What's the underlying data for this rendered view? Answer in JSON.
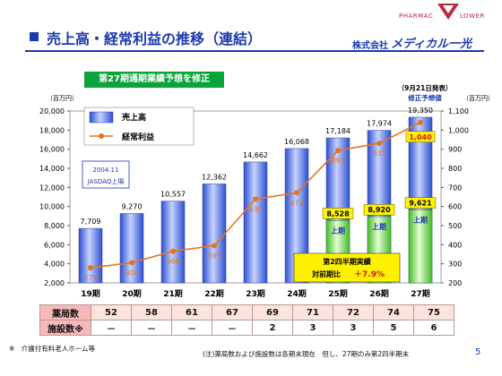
{
  "header": {
    "title": "売上高・経常利益の推移（連結）",
    "company_prefix": "株式会社",
    "company_name": "メディカル一光",
    "brand_left": "PHARMAC",
    "brand_right": "LOWER"
  },
  "banner": "第27期通期業績予想を修正",
  "chart_data": {
    "type": "bar",
    "categories": [
      "19期",
      "20期",
      "21期",
      "22期",
      "23期",
      "24期",
      "25期",
      "26期",
      "27期"
    ],
    "series": [
      {
        "name": "売上高",
        "type": "bar",
        "axis": "left",
        "values": [
          7709,
          9270,
          10557,
          12362,
          14662,
          16068,
          17184,
          17974,
          19350
        ],
        "labels": [
          "7,709",
          "9,270",
          "10,557",
          "12,362",
          "14,662",
          "16,068",
          "17,184",
          "17,974",
          "19,350"
        ]
      },
      {
        "name": "経常利益",
        "type": "line",
        "axis": "right",
        "values": [
          279,
          306,
          366,
          395,
          639,
          672,
          893,
          931,
          1040
        ],
        "labels": [
          "279",
          "306",
          "366",
          "395",
          "639",
          "672",
          "893",
          "931",
          "1,040"
        ]
      }
    ],
    "half_year_values": [
      8528,
      8920,
      9621
    ],
    "half_year_labels": [
      "8,528",
      "8,920",
      "9,621"
    ],
    "half_year_tag": "上期",
    "left_ticks": [
      "20,000",
      "18,000",
      "16,000",
      "14,000",
      "12,000",
      "10,000",
      "8,000",
      "6,000",
      "4,000",
      "2,000"
    ],
    "right_ticks": [
      "1,100",
      "1,000",
      "900",
      "800",
      "700",
      "600",
      "500",
      "400",
      "300",
      "200"
    ],
    "ylim": [
      2000,
      20000
    ],
    "ylim_right": [
      200,
      1100
    ],
    "ylabel": "（百万円）",
    "ylabel_right": "（百万円）",
    "legend_position": "top-left",
    "colors": {
      "bar": "#3a5fd6",
      "half": "#6bd04a",
      "line": "#e8731f",
      "point_label": "#e8731f"
    }
  },
  "annotations": {
    "jasdaq_date": "2004.11",
    "jasdaq_text": "JASDAQ上場",
    "announce_date": "（9月21日発表）",
    "revised_forecast": "修正予想値",
    "h2_title": "第2四半期実績",
    "h2_ratio_label": "対前期比",
    "h2_ratio_value": "＋7.9%"
  },
  "table": {
    "rows": [
      {
        "label": "薬局数",
        "values": [
          "52",
          "58",
          "61",
          "67",
          "69",
          "71",
          "72",
          "74",
          "75"
        ]
      },
      {
        "label": "施設数※",
        "values": [
          "－",
          "－",
          "－",
          "－",
          "2",
          "3",
          "3",
          "5",
          "6"
        ]
      }
    ]
  },
  "footnote_left": "※　介護付有料老人ホーム等",
  "footnote_right": "(注)薬局数および施設数は各期末現在　但し、27期のみ第2四半期末",
  "page_number": "5"
}
